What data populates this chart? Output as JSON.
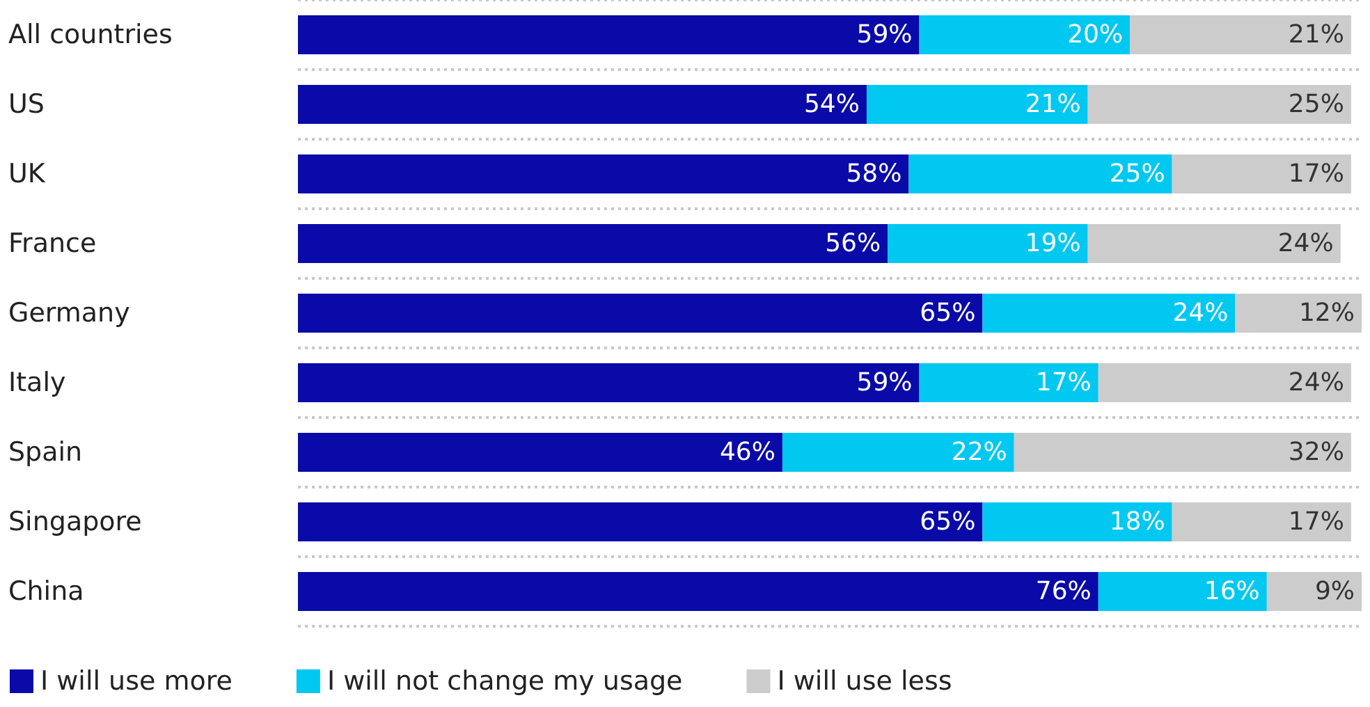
{
  "chart_data": {
    "type": "bar",
    "orientation": "horizontal",
    "stacked": true,
    "legend": "bottom left",
    "grid": "y",
    "tick_labels": "y",
    "categories": [
      "All countries",
      "US",
      "UK",
      "France",
      "Germany",
      "Italy",
      "Spain",
      "Singapore",
      "China"
    ],
    "series": [
      {
        "name": "I will use more",
        "color": "#0a0aa8",
        "values": [
          59,
          54,
          58,
          56,
          65,
          59,
          46,
          65,
          76
        ],
        "value_labels": [
          "59%",
          "54%",
          "58%",
          "56%",
          "65%",
          "59%",
          "46%",
          "65%",
          "76%"
        ]
      },
      {
        "name": "I will not change my usage",
        "color": "#00c8f0",
        "values": [
          20,
          21,
          25,
          19,
          24,
          17,
          22,
          18,
          16
        ],
        "value_labels": [
          "20%",
          "21%",
          "25%",
          "19%",
          "24%",
          "17%",
          "22%",
          "18%",
          "16%"
        ]
      },
      {
        "name": "I will use less",
        "color": "#cccccc",
        "values": [
          21,
          25,
          17,
          24,
          12,
          24,
          32,
          17,
          9
        ],
        "value_labels": [
          "21%",
          "25%",
          "17%",
          "24%",
          "12%",
          "24%",
          "32%",
          "17%",
          "9%"
        ]
      }
    ]
  }
}
